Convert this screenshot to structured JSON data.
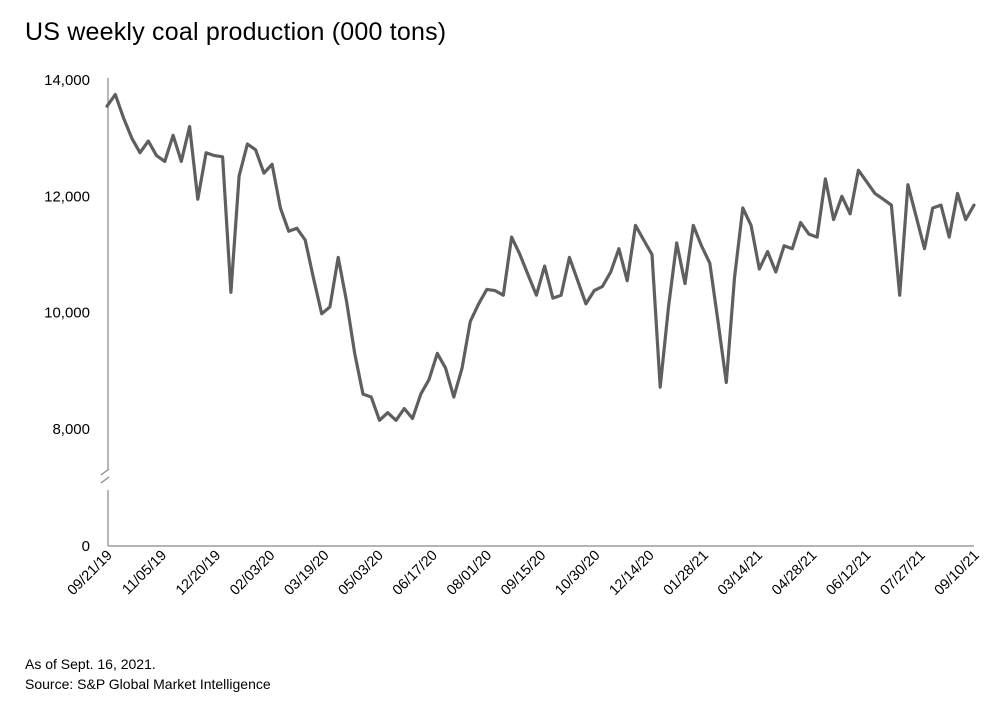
{
  "chart_data": {
    "type": "line",
    "title": "US weekly coal production (000 tons)",
    "note": "As of Sept. 16, 2021.",
    "source": "Source: S&P Global Market Intelligence",
    "ylim": [
      0,
      14000
    ],
    "y_axis_break": true,
    "y_ticks": [
      0,
      8000,
      10000,
      12000,
      14000
    ],
    "y_tick_labels": [
      "0",
      "8,000",
      "10,000",
      "12,000",
      "14,000"
    ],
    "grid": false,
    "line_color": "#5f5f5f",
    "x_tick_labels": [
      "09/21/19",
      "11/05/19",
      "12/20/19",
      "02/03/20",
      "03/19/20",
      "05/03/20",
      "06/17/20",
      "08/01/20",
      "09/15/20",
      "10/30/20",
      "12/14/20",
      "01/28/21",
      "03/14/21",
      "04/28/21",
      "06/12/21",
      "07/27/21",
      "09/10/21"
    ],
    "series": [
      {
        "values": [
          13550,
          13750,
          13350,
          13000,
          12750,
          12950,
          12700,
          12600,
          13050,
          12600,
          13200,
          11950,
          12750,
          12700,
          12680,
          10350,
          12350,
          12900,
          12800,
          12400,
          12550,
          11800,
          11400,
          11450,
          11250,
          10600,
          9980,
          10100,
          10950,
          10200,
          9300,
          8600,
          8550,
          8150,
          8280,
          8150,
          8350,
          8180,
          8600,
          8850,
          9300,
          9050,
          8550,
          9050,
          9850,
          10150,
          10400,
          10380,
          10300,
          11300,
          11000,
          10650,
          10300,
          10800,
          10250,
          10300,
          10950,
          10550,
          10150,
          10380,
          10450,
          10700,
          11100,
          10550,
          11500,
          11250,
          11000,
          8720,
          10100,
          11200,
          10500,
          11500,
          11150,
          10850,
          9850,
          8800,
          10600,
          11800,
          11500,
          10750,
          11050,
          10700,
          11150,
          11100,
          11550,
          11350,
          11300,
          12300,
          11600,
          12000,
          11700,
          12450,
          12250,
          12050,
          11950,
          11850,
          10300,
          12200,
          11650,
          11100,
          11800,
          11850,
          11300,
          12050,
          11600,
          11850
        ]
      }
    ]
  }
}
